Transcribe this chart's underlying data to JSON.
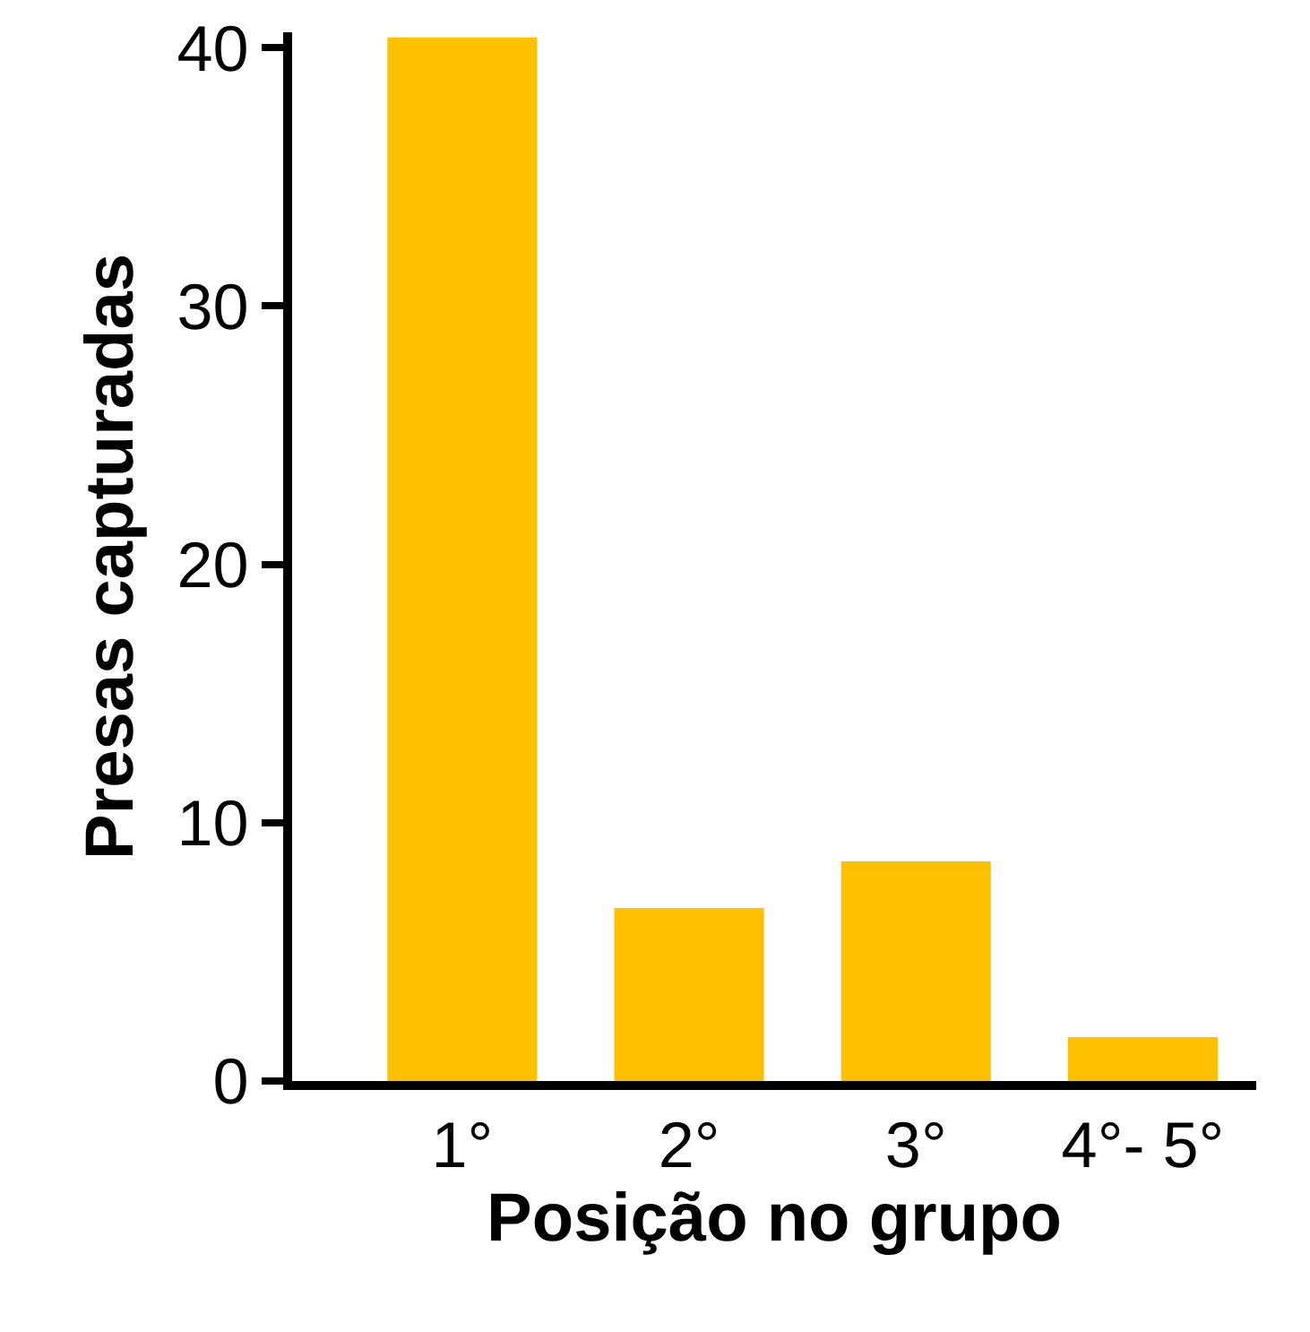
{
  "chart_data": {
    "type": "bar",
    "xlabel": "Posição no grupo",
    "ylabel": "Presas capturadas",
    "categories": [
      "1°",
      "2°",
      "3°",
      "4°- 5°"
    ],
    "values": [
      40.4,
      6.7,
      8.5,
      1.7
    ],
    "color": "#ffc000",
    "ylim": [
      0,
      40.6
    ],
    "yticks": [
      0,
      10,
      20,
      30,
      40
    ],
    "grid": false
  }
}
